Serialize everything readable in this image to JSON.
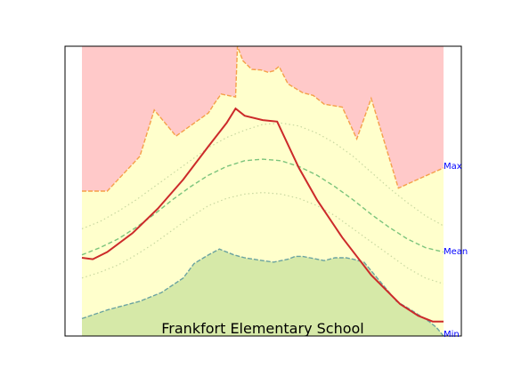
{
  "chart_data": {
    "type": "area",
    "title": "Frankfort Elementary School",
    "xlabel": "",
    "ylabel": "",
    "xlim": [
      0,
      100
    ],
    "ylim": [
      0,
      100
    ],
    "grid": false,
    "right_labels": {
      "max": "Max",
      "mean": "Mean",
      "min": "Min"
    },
    "colors": {
      "above_max": "#ffc9c9",
      "band": "#ffffcc",
      "below_min": "#d6e9a8",
      "max_line": "#f5a04a",
      "min_line": "#6ba3a0",
      "mean_line": "#7cc47c",
      "std_line": "#c8d7a0",
      "actual_line": "#cc2a2a",
      "label": "#0000ff"
    },
    "series": [
      {
        "key": "max",
        "x": [
          0,
          7,
          16,
          20,
          26,
          35,
          36.5,
          38.5,
          42.5,
          43,
          44.5,
          47,
          49.5,
          51.5,
          53,
          54.5,
          57,
          59,
          61,
          64,
          67,
          72,
          76,
          80,
          87.5,
          91,
          100
        ],
        "y": [
          50,
          50,
          62,
          78,
          69,
          77,
          80,
          83.5,
          82.5,
          100,
          95,
          92,
          91.8,
          91,
          91.5,
          93,
          87,
          85.5,
          84,
          83,
          80,
          79,
          68,
          82,
          51,
          53,
          58
        ]
      },
      {
        "key": "min",
        "x": [
          0,
          7,
          16,
          22,
          28,
          31,
          35,
          38,
          42,
          45,
          50,
          53,
          57,
          58,
          59,
          61,
          63,
          65,
          67,
          70,
          73,
          75,
          78,
          83,
          87,
          91,
          96,
          98,
          100
        ],
        "y": [
          6,
          9,
          12,
          15,
          20,
          25,
          28,
          30,
          28,
          27,
          26,
          25.5,
          26.5,
          27,
          27.5,
          27.5,
          27,
          26.5,
          26,
          27,
          27,
          26.5,
          25.5,
          18,
          12,
          9,
          5,
          3,
          0
        ]
      },
      {
        "key": "mean",
        "x": [
          0,
          5,
          10,
          15,
          20,
          25,
          30,
          35,
          40,
          45,
          50,
          55,
          60,
          65,
          70,
          75,
          80,
          85,
          90,
          95,
          100
        ],
        "y": [
          28,
          30.5,
          33.5,
          37.5,
          42,
          47,
          51.5,
          55.5,
          58.5,
          60.5,
          61,
          60.5,
          58.5,
          55.5,
          51.5,
          47,
          42,
          37.5,
          33.5,
          30.5,
          29
        ]
      },
      {
        "key": "mean_plus_std",
        "x": [
          0,
          5,
          10,
          15,
          20,
          25,
          30,
          35,
          40,
          45,
          50,
          55,
          60,
          65,
          70,
          75,
          80,
          85,
          90,
          95,
          100
        ],
        "y": [
          37,
          39.5,
          43,
          47,
          51.5,
          56,
          60.5,
          65,
          68.5,
          71,
          73,
          73.5,
          72.5,
          70,
          66.5,
          62,
          56.5,
          51,
          46,
          41.5,
          38
        ]
      },
      {
        "key": "mean_minus_std",
        "x": [
          0,
          5,
          10,
          15,
          20,
          25,
          30,
          35,
          40,
          45,
          50,
          55,
          60,
          65,
          70,
          75,
          80,
          85,
          90,
          95,
          100
        ],
        "y": [
          20,
          22,
          24.5,
          28,
          32,
          36.5,
          41,
          45,
          47.5,
          49,
          49.5,
          49,
          47.5,
          45,
          41.5,
          37,
          32.5,
          28,
          23.5,
          20,
          18
        ]
      },
      {
        "key": "actual",
        "x": [
          0,
          3,
          7,
          14,
          21,
          28,
          35,
          40,
          42.5,
          45,
          50,
          54,
          60,
          65,
          72,
          80,
          88,
          93,
          97,
          100
        ],
        "y": [
          27,
          26.5,
          29,
          35.5,
          44,
          54,
          65.5,
          73.5,
          78.5,
          76,
          74.5,
          74,
          58,
          47,
          34,
          21,
          11,
          7,
          5,
          5
        ]
      }
    ]
  }
}
